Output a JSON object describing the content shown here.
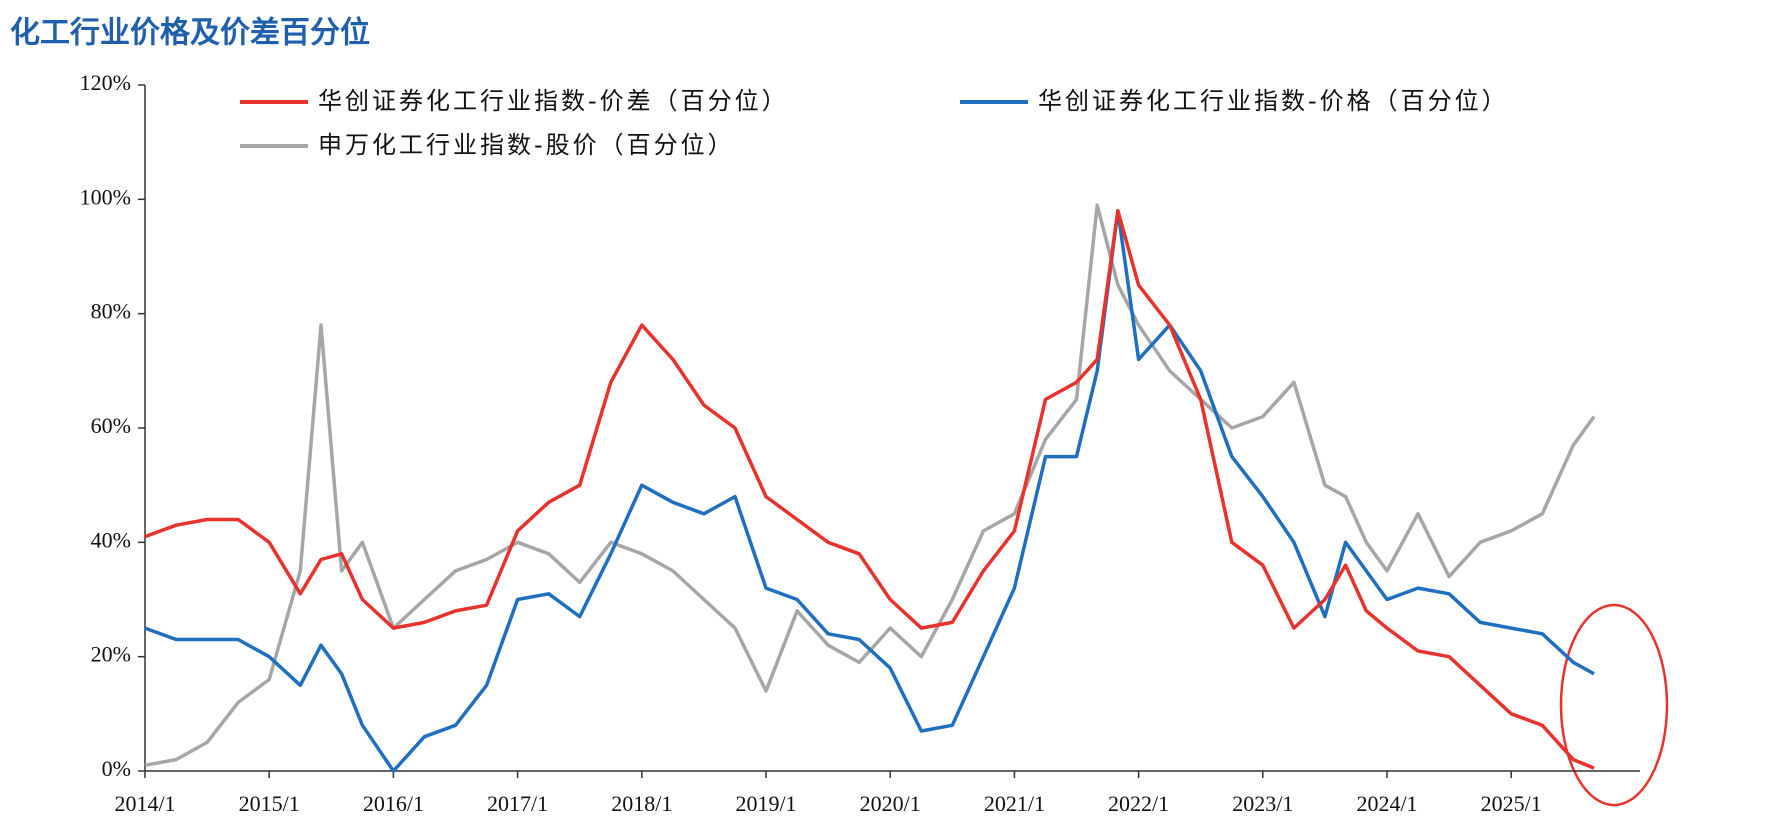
{
  "chart_data": {
    "type": "line",
    "title": "化工行业价格及价差百分位",
    "x": [
      "2014/1",
      "2014/4",
      "2014/7",
      "2014/10",
      "2015/1",
      "2015/4",
      "2015/6",
      "2015/8",
      "2015/10",
      "2016/1",
      "2016/4",
      "2016/7",
      "2016/10",
      "2017/1",
      "2017/4",
      "2017/7",
      "2017/10",
      "2018/1",
      "2018/4",
      "2018/7",
      "2018/10",
      "2019/1",
      "2019/4",
      "2019/7",
      "2019/10",
      "2020/1",
      "2020/4",
      "2020/7",
      "2020/10",
      "2021/1",
      "2021/4",
      "2021/7",
      "2021/9",
      "2021/11",
      "2022/1",
      "2022/4",
      "2022/7",
      "2022/10",
      "2023/1",
      "2023/4",
      "2023/7",
      "2023/9",
      "2023/11",
      "2024/1",
      "2024/4",
      "2024/7",
      "2024/10",
      "2025/1",
      "2025/4",
      "2025/7",
      "2025/9"
    ],
    "series": [
      {
        "name": "华创证券化工行业指数-价差（百分位）",
        "color": "#e8322c",
        "values": [
          41,
          43,
          44,
          44,
          40,
          31,
          37,
          38,
          30,
          25,
          26,
          28,
          29,
          42,
          47,
          50,
          68,
          78,
          72,
          64,
          60,
          48,
          44,
          40,
          38,
          30,
          25,
          26,
          35,
          42,
          65,
          68,
          72,
          98,
          85,
          78,
          65,
          40,
          36,
          25,
          30,
          36,
          28,
          25,
          21,
          20,
          15,
          10,
          8,
          2,
          0.5
        ]
      },
      {
        "name": "华创证券化工行业指数-价格（百分位）",
        "color": "#1f6fc0",
        "values": [
          25,
          23,
          23,
          23,
          20,
          15,
          22,
          17,
          8,
          0,
          6,
          8,
          15,
          30,
          31,
          27,
          38,
          50,
          47,
          45,
          48,
          32,
          30,
          24,
          23,
          18,
          7,
          8,
          20,
          32,
          55,
          55,
          70,
          98,
          72,
          78,
          70,
          55,
          48,
          40,
          27,
          40,
          35,
          30,
          32,
          31,
          26,
          25,
          24,
          19,
          17
        ]
      },
      {
        "name": "申万化工行业指数-股价（百分位）",
        "color": "#a6a6a6",
        "values": [
          1,
          2,
          5,
          12,
          16,
          35,
          78,
          35,
          40,
          25,
          30,
          35,
          37,
          40,
          38,
          33,
          40,
          38,
          35,
          30,
          25,
          14,
          28,
          22,
          19,
          25,
          20,
          30,
          42,
          45,
          58,
          65,
          99,
          85,
          78,
          70,
          65,
          60,
          62,
          68,
          50,
          48,
          40,
          35,
          45,
          34,
          40,
          42,
          45,
          57,
          62
        ]
      }
    ],
    "ylim": [
      0,
      120
    ],
    "yticks": [
      {
        "value": 0,
        "label": "0%"
      },
      {
        "value": 20,
        "label": "20%"
      },
      {
        "value": 40,
        "label": "40%"
      },
      {
        "value": 60,
        "label": "60%"
      },
      {
        "value": 80,
        "label": "80%"
      },
      {
        "value": 100,
        "label": "100%"
      },
      {
        "value": 120,
        "label": "120%"
      }
    ],
    "xticks": [
      "2014/1",
      "2015/1",
      "2016/1",
      "2017/1",
      "2018/1",
      "2019/1",
      "2020/1",
      "2021/1",
      "2022/1",
      "2023/1",
      "2024/1",
      "2025/1"
    ]
  }
}
